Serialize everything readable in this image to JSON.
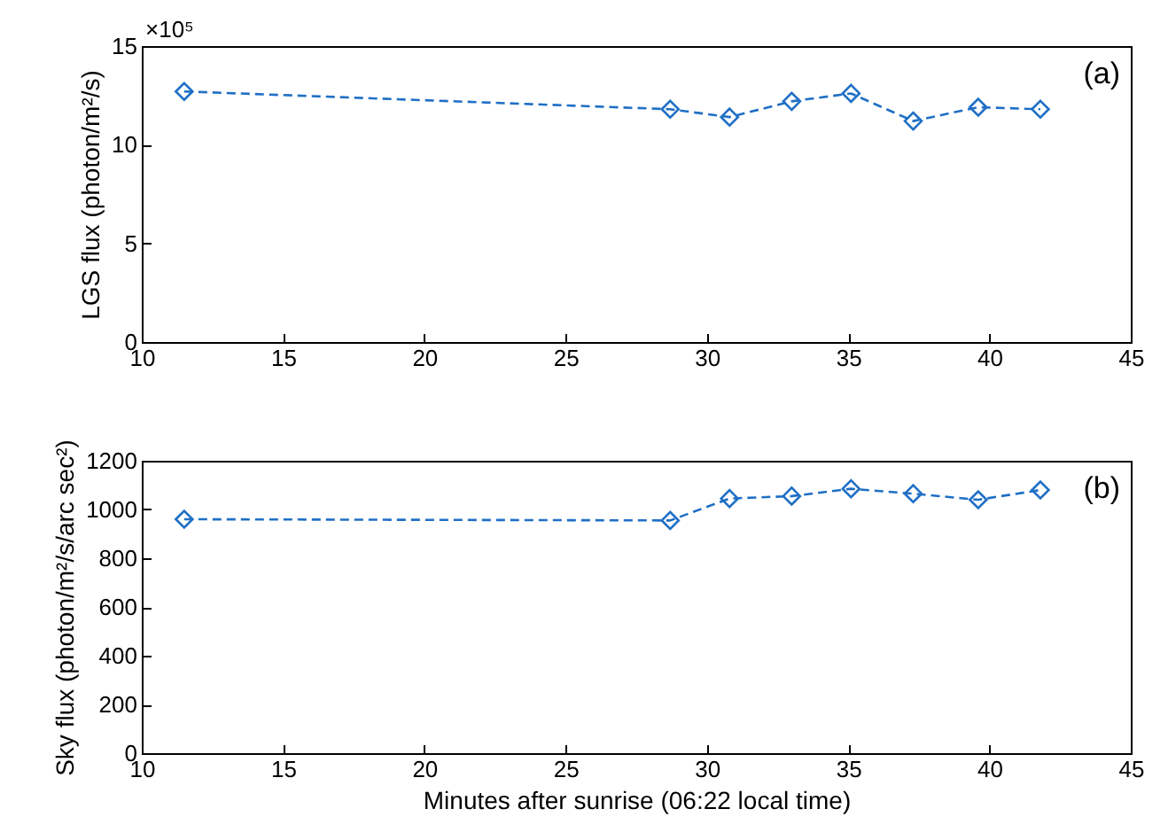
{
  "chart_data": [
    {
      "type": "line",
      "ylabel": "LGS flux (photon/m²/s)",
      "annotations": [
        "×10⁵",
        "(a)"
      ],
      "x": [
        11.5,
        28.7,
        30.8,
        33.0,
        35.1,
        37.3,
        39.6,
        41.8
      ],
      "series": [
        {
          "color": "#1f6fc5",
          "values": [
            12.7,
            11.8,
            11.4,
            12.2,
            12.6,
            11.2,
            11.9,
            11.8
          ]
        }
      ],
      "xlim": [
        10,
        45
      ],
      "xticks": [
        10,
        15,
        20,
        25,
        30,
        35,
        40,
        45
      ],
      "ylim": [
        0,
        15
      ],
      "yticks": [
        0,
        5,
        10,
        15
      ],
      "grid": false,
      "marker": "diamond",
      "line_style": "dashed"
    },
    {
      "type": "line",
      "xlabel": "Minutes after sunrise (06:22 local time)",
      "ylabel": "Sky flux (photon/m²/s/arc sec²)",
      "annotations": [
        "(b)"
      ],
      "x": [
        11.5,
        28.7,
        30.8,
        33.0,
        35.1,
        37.3,
        39.6,
        41.8
      ],
      "series": [
        {
          "color": "#1f6fc5",
          "values": [
            960,
            955,
            1045,
            1055,
            1085,
            1065,
            1040,
            1080
          ]
        }
      ],
      "xlim": [
        10,
        45
      ],
      "xticks": [
        10,
        15,
        20,
        25,
        30,
        35,
        40,
        45
      ],
      "ylim": [
        0,
        1200
      ],
      "yticks": [
        0,
        200,
        400,
        600,
        800,
        1000,
        1200
      ],
      "grid": false,
      "marker": "diamond",
      "line_style": "dashed"
    }
  ]
}
